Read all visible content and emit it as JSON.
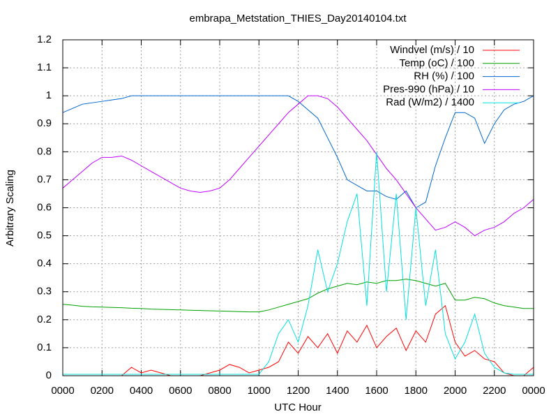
{
  "chart_data": {
    "type": "line",
    "title": "embrapa_Metstation_THIES_Day20140104.txt",
    "xlabel": "UTC Hour",
    "ylabel": "Arbitrary Scaling",
    "x": [
      0,
      0.5,
      1,
      1.5,
      2,
      2.5,
      3,
      3.5,
      4,
      4.5,
      5,
      5.5,
      6,
      6.5,
      7,
      7.5,
      8,
      8.5,
      9,
      9.5,
      10,
      10.5,
      11,
      11.5,
      12,
      12.5,
      13,
      13.5,
      14,
      14.5,
      15,
      15.5,
      16,
      16.5,
      17,
      17.5,
      18,
      18.5,
      19,
      19.5,
      20,
      20.5,
      21,
      21.5,
      22,
      22.5,
      23,
      23.5,
      24
    ],
    "series": [
      {
        "name": "Windvel (m/s) / 10",
        "color": "#ff0000",
        "values": [
          0,
          0,
          0,
          0,
          0,
          0,
          0,
          0.03,
          0.01,
          0.02,
          0.01,
          0,
          0,
          0,
          0,
          0.01,
          0.02,
          0.04,
          0.03,
          0.01,
          0.02,
          0.03,
          0.05,
          0.12,
          0.08,
          0.14,
          0.1,
          0.15,
          0.08,
          0.16,
          0.12,
          0.18,
          0.1,
          0.14,
          0.17,
          0.09,
          0.16,
          0.12,
          0.22,
          0.25,
          0.12,
          0.07,
          0.09,
          0.06,
          0.05,
          0.01,
          0,
          0,
          0.03
        ]
      },
      {
        "name": "Temp (oC) / 100",
        "color": "#00a000",
        "values": [
          0.255,
          0.252,
          0.248,
          0.246,
          0.245,
          0.244,
          0.243,
          0.241,
          0.24,
          0.238,
          0.237,
          0.236,
          0.235,
          0.234,
          0.233,
          0.232,
          0.231,
          0.23,
          0.229,
          0.228,
          0.228,
          0.235,
          0.245,
          0.255,
          0.265,
          0.275,
          0.295,
          0.31,
          0.32,
          0.33,
          0.325,
          0.335,
          0.33,
          0.34,
          0.34,
          0.345,
          0.34,
          0.33,
          0.32,
          0.33,
          0.27,
          0.27,
          0.28,
          0.275,
          0.26,
          0.25,
          0.245,
          0.24,
          0.24
        ]
      },
      {
        "name": "RH (%) / 100",
        "color": "#0066cc",
        "values": [
          0.94,
          0.955,
          0.97,
          0.975,
          0.98,
          0.985,
          0.99,
          1.0,
          1.0,
          1.0,
          1.0,
          1.0,
          1.0,
          1.0,
          1.0,
          1.0,
          1.0,
          1.0,
          1.0,
          1.0,
          1.0,
          1.0,
          1.0,
          1.0,
          0.98,
          0.95,
          0.92,
          0.85,
          0.78,
          0.7,
          0.68,
          0.66,
          0.66,
          0.64,
          0.63,
          0.66,
          0.6,
          0.62,
          0.75,
          0.85,
          0.94,
          0.94,
          0.92,
          0.83,
          0.9,
          0.95,
          0.97,
          0.98,
          1.0
        ]
      },
      {
        "name": "Pres-990 (hPa) / 10",
        "color": "#c000ff",
        "values": [
          0.67,
          0.7,
          0.73,
          0.76,
          0.78,
          0.78,
          0.785,
          0.77,
          0.75,
          0.73,
          0.71,
          0.69,
          0.67,
          0.66,
          0.655,
          0.66,
          0.67,
          0.7,
          0.74,
          0.78,
          0.82,
          0.86,
          0.9,
          0.94,
          0.97,
          1.0,
          1.0,
          0.99,
          0.96,
          0.92,
          0.88,
          0.84,
          0.79,
          0.74,
          0.7,
          0.65,
          0.6,
          0.56,
          0.52,
          0.53,
          0.55,
          0.53,
          0.5,
          0.52,
          0.53,
          0.55,
          0.58,
          0.6,
          0.63
        ]
      },
      {
        "name": "Rad (W/m2) / 1400",
        "color": "#00e0e0",
        "values": [
          0.005,
          0.005,
          0.005,
          0.005,
          0.005,
          0.005,
          0.005,
          0.005,
          0.005,
          0.005,
          0.005,
          0.005,
          0.005,
          0.005,
          0.005,
          0.005,
          0.005,
          0.005,
          0.005,
          0.005,
          0.005,
          0.05,
          0.15,
          0.2,
          0.12,
          0.25,
          0.45,
          0.3,
          0.4,
          0.55,
          0.65,
          0.25,
          0.8,
          0.3,
          0.65,
          0.2,
          0.6,
          0.25,
          0.45,
          0.15,
          0.06,
          0.12,
          0.22,
          0.08,
          0.03,
          0.01,
          0.005,
          0.005,
          0.005
        ]
      }
    ],
    "xlim": [
      0,
      24
    ],
    "xticks": [
      {
        "value": 0,
        "label": "0000"
      },
      {
        "value": 2,
        "label": "0200"
      },
      {
        "value": 4,
        "label": "0400"
      },
      {
        "value": 6,
        "label": "0600"
      },
      {
        "value": 8,
        "label": "0800"
      },
      {
        "value": 10,
        "label": "1000"
      },
      {
        "value": 12,
        "label": "1200"
      },
      {
        "value": 14,
        "label": "1400"
      },
      {
        "value": 16,
        "label": "1600"
      },
      {
        "value": 18,
        "label": "1800"
      },
      {
        "value": 20,
        "label": "2000"
      },
      {
        "value": 22,
        "label": "2200"
      },
      {
        "value": 24,
        "label": "0000"
      }
    ],
    "ylim": [
      0,
      1.2
    ],
    "yticks": [
      0,
      0.1,
      0.2,
      0.3,
      0.4,
      0.5,
      0.6,
      0.7,
      0.8,
      0.9,
      1,
      1.1,
      1.2
    ],
    "grid": true,
    "legend": "top-right"
  }
}
